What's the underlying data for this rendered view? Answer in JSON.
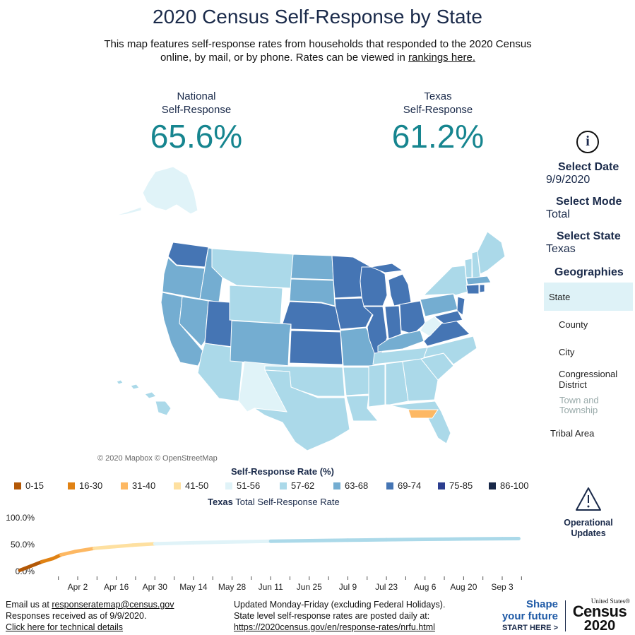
{
  "header": {
    "title": "2020 Census Self-Response by State",
    "intro_text": "This map features self-response rates from households that responded to the 2020 Census online, by mail, or by phone. Rates can be viewed in ",
    "intro_link": "rankings here."
  },
  "stats": {
    "national_label_1": "National",
    "national_label_2": "Self-Response",
    "national_value": "65.6%",
    "state_label_1": "Texas",
    "state_label_2": "Self-Response",
    "state_value": "61.2%"
  },
  "sidebar": {
    "info_icon": "info-icon",
    "select_date_label": "Select Date",
    "select_date_value": "9/9/2020",
    "select_mode_label": "Select Mode",
    "select_mode_value": "Total",
    "select_state_label": "Select State",
    "select_state_value": "Texas",
    "geographies_label": "Geographies",
    "geographies": [
      "State",
      "County",
      "City",
      "Congressional District",
      "Town and Township",
      "Tribal Area"
    ],
    "selected_geography": "State",
    "operational_label_1": "Operational",
    "operational_label_2": "Updates"
  },
  "map": {
    "attribution": "© 2020 Mapbox © OpenStreetMap"
  },
  "legend": {
    "title": "Self-Response Rate (%)",
    "items": [
      {
        "label": "0-15",
        "color": "#b35806"
      },
      {
        "label": "16-30",
        "color": "#e08214"
      },
      {
        "label": "31-40",
        "color": "#fdb863"
      },
      {
        "label": "41-50",
        "color": "#fee0a0"
      },
      {
        "label": "51-56",
        "color": "#e0f3f8"
      },
      {
        "label": "57-62",
        "color": "#abd9e9"
      },
      {
        "label": "63-68",
        "color": "#74add1"
      },
      {
        "label": "69-74",
        "color": "#4575b4"
      },
      {
        "label": "75-85",
        "color": "#2c3e8f"
      },
      {
        "label": "86-100",
        "color": "#182848"
      }
    ]
  },
  "chart_data": {
    "type": "line",
    "title_bold": "Texas",
    "title_rest": " Total Self-Response Rate",
    "y_ticks": [
      "100.0%",
      "50.0%",
      "0.0%"
    ],
    "ylim": [
      0,
      100
    ],
    "x_ticks": [
      "Apr 2",
      "Apr 16",
      "Apr 30",
      "May 14",
      "May 28",
      "Jun 11",
      "Jun 25",
      "Jul 9",
      "Jul 23",
      "Aug 6",
      "Aug 20",
      "Sep 3"
    ],
    "x_start": "2020-03-12",
    "x_end": "2020-09-09",
    "series": [
      {
        "x": [
          "2020-03-12",
          "2020-03-16",
          "2020-03-20",
          "2020-03-24",
          "2020-03-27",
          "2020-04-01",
          "2020-04-08",
          "2020-04-15",
          "2020-04-22",
          "2020-04-30",
          "2020-05-14",
          "2020-05-28",
          "2020-06-11",
          "2020-06-25",
          "2020-07-09",
          "2020-07-23",
          "2020-08-06",
          "2020-08-20",
          "2020-09-03",
          "2020-09-09"
        ],
        "y": [
          2,
          10,
          18,
          24,
          31,
          37,
          43,
          46,
          49,
          51.5,
          53.5,
          55,
          56.3,
          57.2,
          58.2,
          59,
          59.8,
          60.5,
          61,
          61.2
        ]
      }
    ]
  },
  "footer": {
    "email_prefix": "Email us at ",
    "email_link": "responseratemap@census.gov",
    "responses_asof": "Responses received as of 9/9/2020.",
    "tech_link": "Click here for technical details",
    "updated_line1": "Updated Monday-Friday (excluding Federal Holidays).",
    "updated_line2": "State level self-response rates are posted daily at:",
    "updated_link": "https://2020census.gov/en/response-rates/nrfu.html",
    "shape_1": "Shape",
    "shape_2": "your future",
    "shape_3": "START HERE >",
    "logo_small": "United States®",
    "logo_big_1": "Census",
    "logo_big_2": "2020"
  }
}
